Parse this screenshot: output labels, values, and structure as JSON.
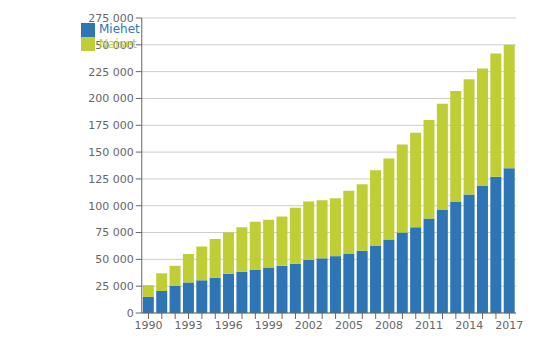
{
  "chart_data": {
    "type": "bar",
    "stacked": true,
    "categories": [
      "1990",
      null,
      null,
      "1993",
      null,
      null,
      "1996",
      null,
      null,
      "1999",
      null,
      null,
      "2002",
      null,
      null,
      "2005",
      null,
      null,
      "2008",
      null,
      null,
      "2011",
      null,
      null,
      "2014",
      null,
      null,
      "2017"
    ],
    "series": [
      {
        "name": "Miehet",
        "color": "#2e75b6",
        "values": [
          15000,
          20500,
          25500,
          28500,
          30500,
          33000,
          36500,
          38500,
          40500,
          42500,
          44000,
          46000,
          49500,
          51000,
          53000,
          55000,
          58000,
          62500,
          68500,
          75000,
          80000,
          88000,
          96500,
          103500,
          110500,
          118500,
          127000,
          135000
        ]
      },
      {
        "name": "Naiset",
        "color": "#bfce35",
        "values": [
          11000,
          16500,
          18500,
          26500,
          31500,
          36000,
          38500,
          41500,
          44500,
          44500,
          46000,
          52000,
          54500,
          54000,
          54000,
          59000,
          62000,
          70500,
          75500,
          82000,
          88000,
          92000,
          98500,
          103500,
          107500,
          109500,
          115000,
          115000
        ]
      }
    ],
    "ylim": [
      0,
      275000
    ],
    "yticks": [
      0,
      {
        "value": 25000,
        "label": "25 000"
      },
      {
        "value": 50000,
        "label": "50 000"
      },
      {
        "value": 75000,
        "label": "75 000"
      },
      {
        "value": 100000,
        "label": "100 000"
      },
      {
        "value": 125000,
        "label": "125 000"
      },
      {
        "value": 150000,
        "label": "150 000"
      },
      {
        "value": 175000,
        "label": "175 000"
      },
      {
        "value": 200000,
        "label": "200 000"
      },
      {
        "value": 225000,
        "label": "225 000"
      },
      {
        "value": 250000,
        "label": "250 000"
      },
      {
        "value": 275000,
        "label": "275 000"
      }
    ],
    "grid": true,
    "legend": "upper left"
  }
}
